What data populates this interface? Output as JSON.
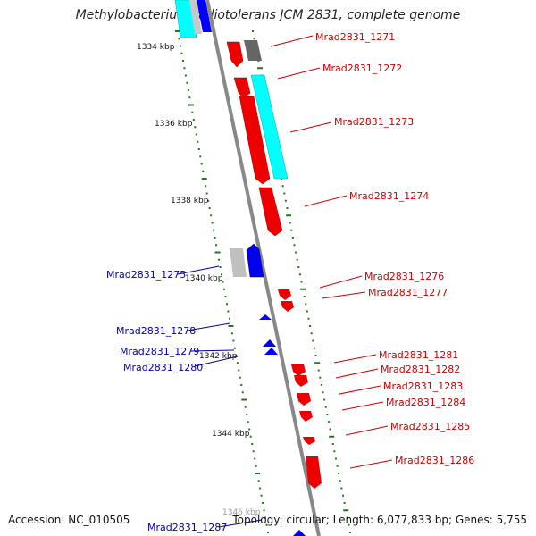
{
  "title": "Methylobacterium radiotolerans JCM 2831, complete genome",
  "footer": {
    "accession": "Accession: NC_010505",
    "summary": "Topology: circular; Length: 6,077,833 bp; Genes: 5,755"
  },
  "colors": {
    "forward_gene": "#ff0000",
    "reverse_gene": "#0000ff",
    "rna": "#00ffff",
    "pseudo": "#888888",
    "label_forward": "#cc0000",
    "label_reverse": "#0000aa",
    "tick": "#227722",
    "backbone": "#888888"
  },
  "ticks": [
    {
      "label": "1334 kbp"
    },
    {
      "label": "1336 kbp"
    },
    {
      "label": "1338 kbp"
    },
    {
      "label": "1340 kbp"
    },
    {
      "label": "1342 kbp"
    },
    {
      "label": "1344 kbp"
    },
    {
      "label": "1346 kbp"
    }
  ],
  "labels_forward": [
    "Mrad2831_1271",
    "Mrad2831_1272",
    "Mrad2831_1273",
    "Mrad2831_1274",
    "Mrad2831_1276",
    "Mrad2831_1277",
    "Mrad2831_1281",
    "Mrad2831_1282",
    "Mrad2831_1283",
    "Mrad2831_1284",
    "Mrad2831_1285",
    "Mrad2831_1286"
  ],
  "labels_reverse": [
    "Mrad2831_1275",
    "Mrad2831_1278",
    "Mrad2831_1279",
    "Mrad2831_1280",
    "Mrad2831_1287"
  ]
}
